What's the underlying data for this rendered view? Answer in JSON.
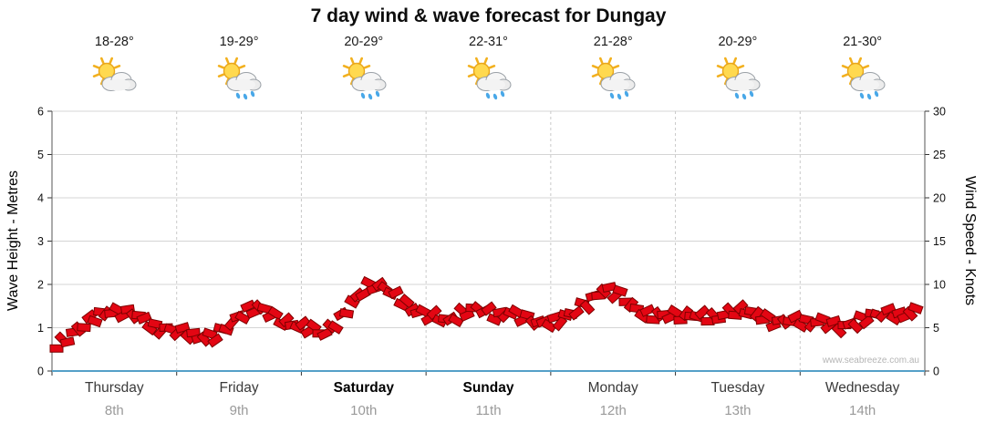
{
  "title": "7 day wind & wave forecast for Dungay",
  "watermark": "www.seabreeze.com.au",
  "colors": {
    "marker_fill": "#e30613",
    "marker_outline": "#7e0000",
    "axis_blue": "#55a0c8",
    "grid": "#d4d4d4",
    "day_separator": "#c9c9c9",
    "sun_yellow": "#ffd94f",
    "rain_blue": "#49a8e8"
  },
  "axes": {
    "left_label": "Wave Height - Metres",
    "right_label": "Wind Speed - Knots",
    "left_ticks": [
      0,
      1,
      2,
      3,
      4,
      5,
      6
    ],
    "right_ticks": [
      0,
      5,
      10,
      15,
      20,
      25,
      30
    ]
  },
  "days": [
    {
      "name": "Thursday",
      "date": "8th",
      "temp": "18-28°",
      "condition": "partly-cloudy",
      "bold": false
    },
    {
      "name": "Friday",
      "date": "9th",
      "temp": "19-29°",
      "condition": "showers",
      "bold": false
    },
    {
      "name": "Saturday",
      "date": "10th",
      "temp": "20-29°",
      "condition": "showers",
      "bold": true
    },
    {
      "name": "Sunday",
      "date": "11th",
      "temp": "22-31°",
      "condition": "showers",
      "bold": true
    },
    {
      "name": "Monday",
      "date": "12th",
      "temp": "21-28°",
      "condition": "showers",
      "bold": false
    },
    {
      "name": "Tuesday",
      "date": "13th",
      "temp": "20-29°",
      "condition": "showers",
      "bold": false
    },
    {
      "name": "Wednesday",
      "date": "14th",
      "temp": "21-30°",
      "condition": "showers",
      "bold": false
    }
  ],
  "chart_data": {
    "type": "line",
    "title": "7 day wind & wave forecast for Dungay",
    "categories": [
      "Thursday 8th",
      "Friday 9th",
      "Saturday 10th",
      "Sunday 11th",
      "Monday 12th",
      "Tuesday 13th",
      "Wednesday 14th"
    ],
    "points_per_day": 8,
    "x_unit": "3-hourly steps within each day",
    "left_axis": {
      "label": "Wave Height - Metres",
      "range": [
        0,
        6
      ]
    },
    "right_axis": {
      "label": "Wind Speed - Knots",
      "range": [
        0,
        30
      ]
    },
    "grid": true,
    "legend": "none",
    "marker_style": "dense band of red rotated wind-direction barbs with dark red outline",
    "note": "Single red band readable on both axes; wave metres = knots / 5 at this axis scaling",
    "series": [
      {
        "name": "Wind Speed (knots)",
        "values_by_day": [
          [
            3.0,
            4.5,
            6.0,
            6.8,
            6.8,
            6.5,
            5.0,
            4.8
          ],
          [
            4.5,
            3.8,
            4.0,
            5.5,
            7.0,
            7.3,
            6.0,
            5.3
          ],
          [
            5.0,
            4.3,
            6.0,
            8.5,
            10.0,
            9.5,
            8.0,
            6.8
          ],
          [
            6.3,
            5.8,
            6.8,
            7.3,
            6.3,
            6.8,
            6.0,
            5.5
          ],
          [
            5.8,
            6.8,
            8.0,
            9.5,
            8.8,
            7.0,
            6.3,
            6.5
          ],
          [
            6.3,
            6.5,
            6.0,
            6.8,
            7.0,
            6.3,
            5.5,
            6.0
          ],
          [
            5.5,
            5.8,
            5.0,
            5.5,
            6.3,
            6.8,
            6.3,
            7.0
          ]
        ]
      }
    ]
  }
}
